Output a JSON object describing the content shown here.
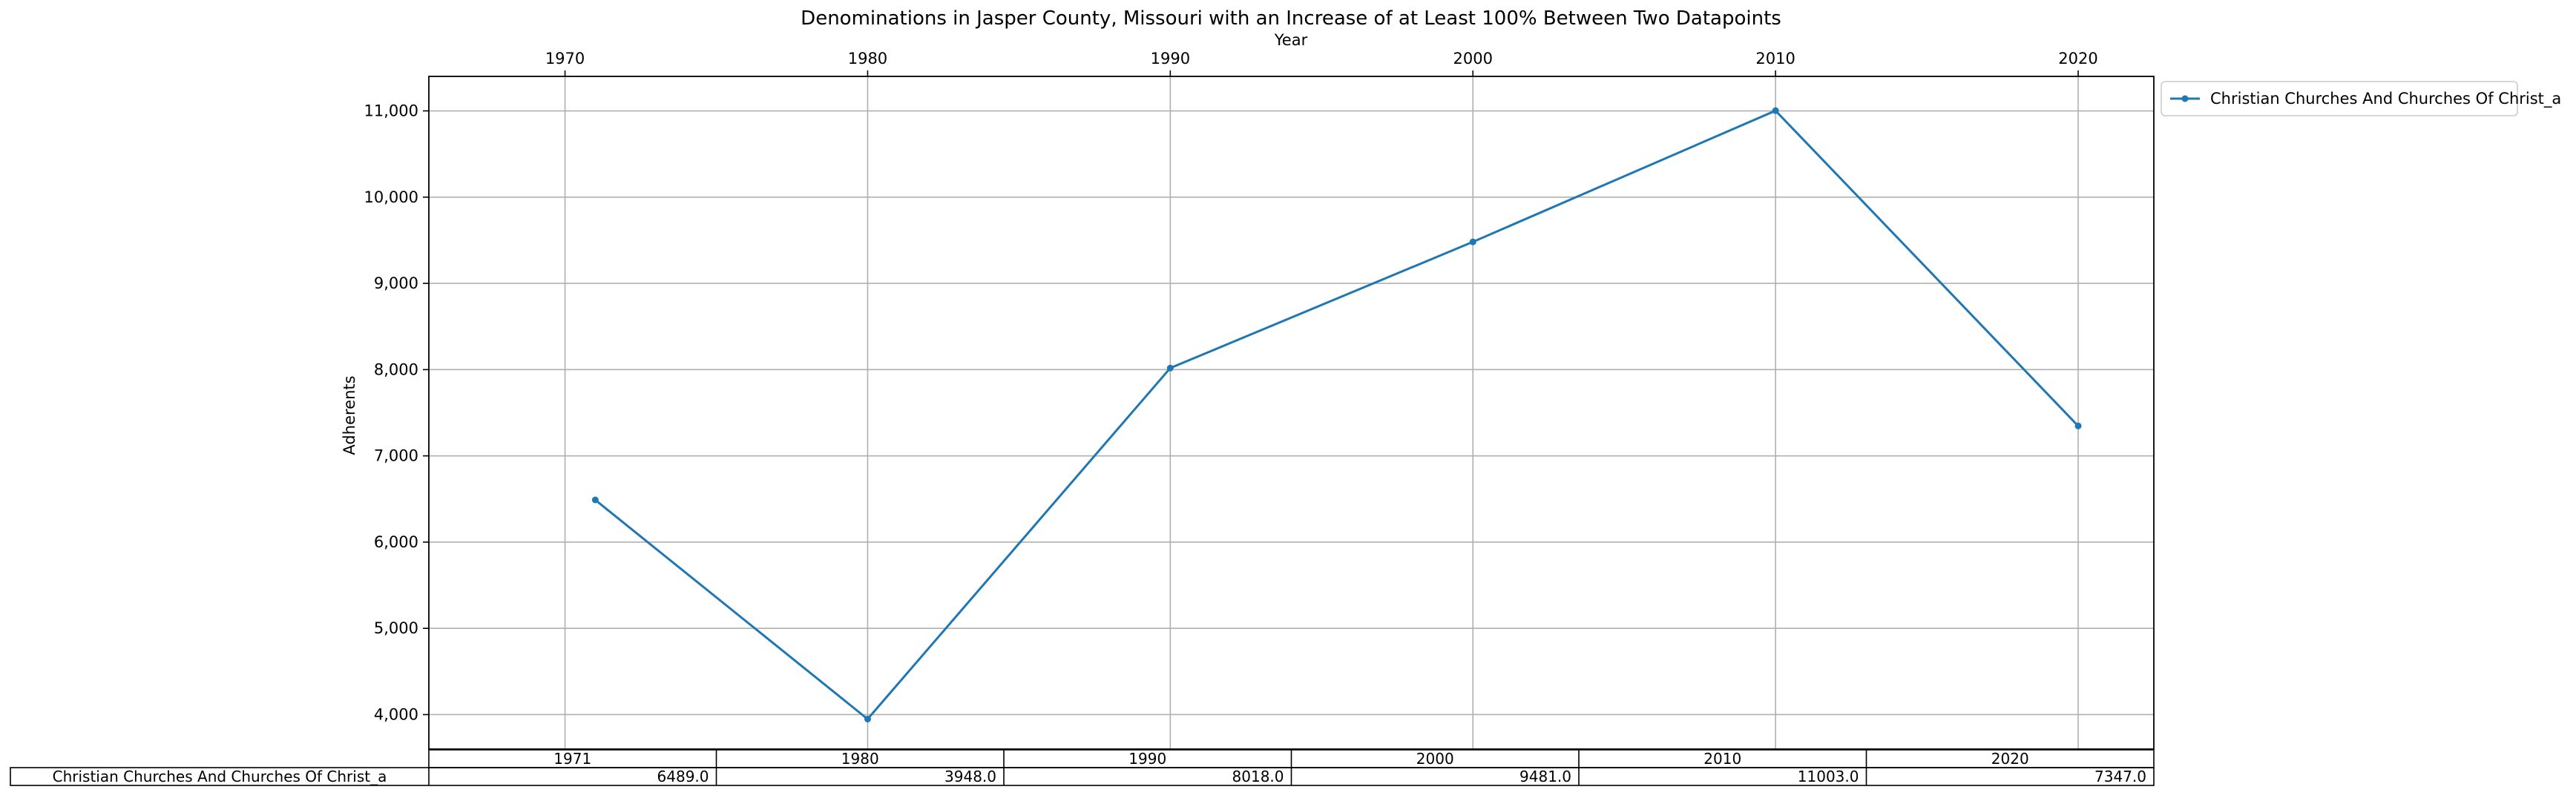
{
  "chart_data": {
    "type": "line",
    "title": "Denominations in Jasper County, Missouri with an Increase of at Least 100% Between Two Datapoints",
    "xlabel": "Year",
    "ylabel": "Adherents",
    "x_ticks": [
      "1970",
      "1980",
      "1990",
      "2000",
      "2010",
      "2020"
    ],
    "y_ticks": [
      "4,000",
      "5,000",
      "6,000",
      "7,000",
      "8,000",
      "9,000",
      "10,000",
      "11,000"
    ],
    "xlim": [
      1965.5,
      2022.5
    ],
    "ylim": [
      3600,
      11400
    ],
    "grid": true,
    "legend_position": "upper-right-outside",
    "x_axis_position": "top",
    "series": [
      {
        "name": "Christian Churches And Churches Of Christ_a",
        "color": "#1f77b4",
        "x": [
          1971,
          1980,
          1990,
          2000,
          2010,
          2020
        ],
        "values": [
          6489,
          3948,
          8018,
          9481,
          11003,
          7347
        ]
      }
    ],
    "table": {
      "columns": [
        "1971",
        "1980",
        "1990",
        "2000",
        "2010",
        "2020"
      ],
      "rows": [
        {
          "label": "Christian Churches And Churches Of Christ_a",
          "cells": [
            "6489.0",
            "3948.0",
            "8018.0",
            "9481.0",
            "11003.0",
            "7347.0"
          ]
        }
      ]
    }
  }
}
